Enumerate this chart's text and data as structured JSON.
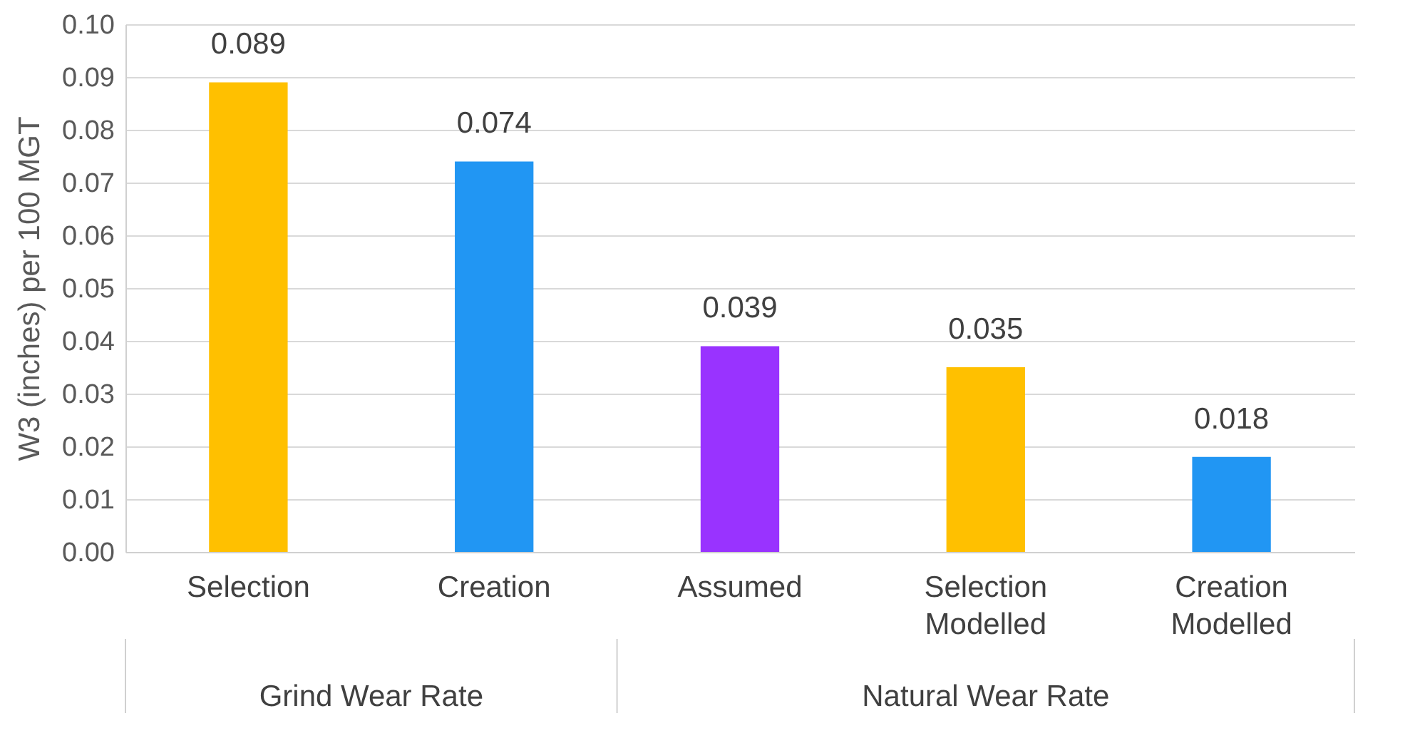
{
  "chart_data": {
    "type": "bar",
    "ylabel": "W3 (inches) per 100 MGT",
    "categories": [
      "Selection",
      "Creation",
      "Assumed",
      "Selection Modelled",
      "Creation Modelled"
    ],
    "values": [
      0.089,
      0.074,
      0.039,
      0.035,
      0.018
    ],
    "colors": [
      "#ffc000",
      "#2196f3",
      "#9933ff",
      "#ffc000",
      "#2196f3"
    ],
    "ylim": [
      0,
      0.1
    ],
    "yticks": [
      {
        "value": 0,
        "label": "0.00"
      },
      {
        "value": 0.01,
        "label": "0.01"
      },
      {
        "value": 0.02,
        "label": "0.02"
      },
      {
        "value": 0.03,
        "label": "0.03"
      },
      {
        "value": 0.04,
        "label": "0.04"
      },
      {
        "value": 0.05,
        "label": "0.05"
      },
      {
        "value": 0.06,
        "label": "0.06"
      },
      {
        "value": 0.07,
        "label": "0.07"
      },
      {
        "value": 0.08,
        "label": "0.08"
      },
      {
        "value": 0.09,
        "label": "0.09"
      },
      {
        "value": 0.1,
        "label": "0.10"
      }
    ],
    "grid": "y",
    "data_labels": true,
    "annotations": [
      "Grind Wear Rate",
      "Natural Wear Rate"
    ]
  }
}
